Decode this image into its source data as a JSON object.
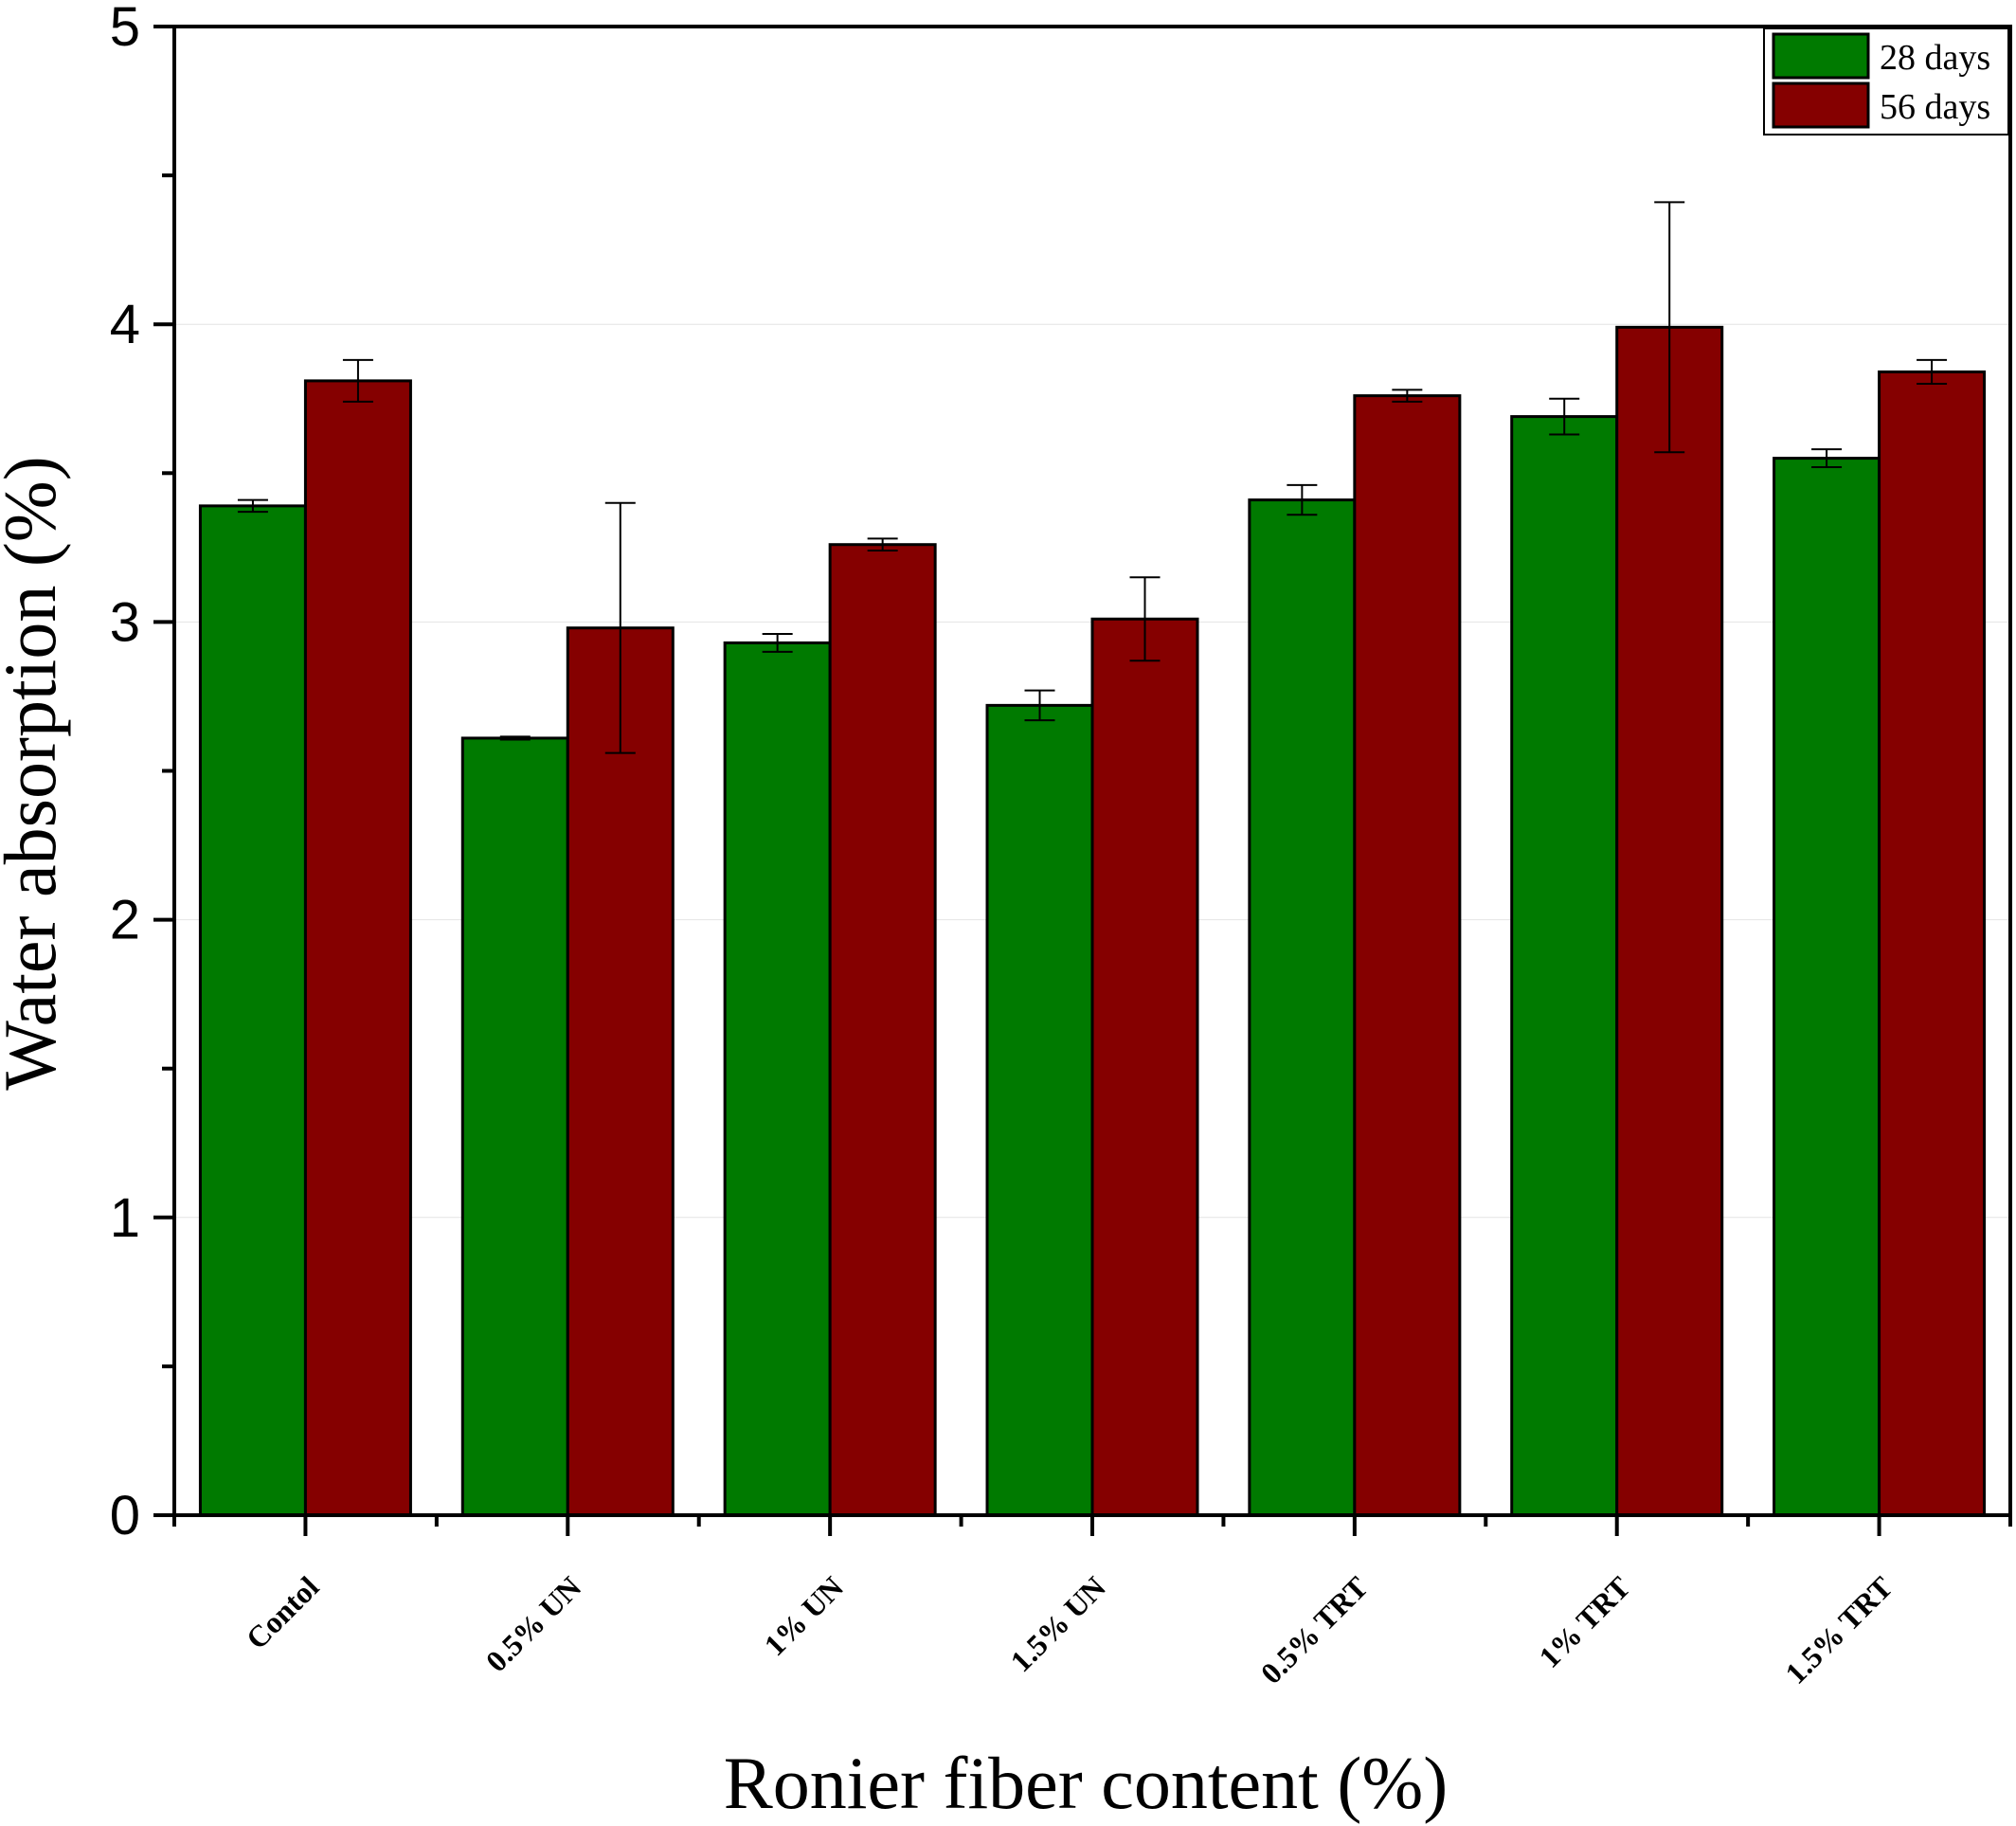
{
  "chart_data": {
    "type": "bar",
    "categories": [
      "Contol",
      "0.5% UN",
      "1% UN",
      "1.5% UN",
      "0.5% TRT",
      "1% TRT",
      "1.5% TRT"
    ],
    "series": [
      {
        "name": "28 days",
        "color": "#007a00",
        "values": [
          3.39,
          2.61,
          2.93,
          2.72,
          3.41,
          3.69,
          3.55
        ],
        "errors": [
          0.02,
          0.005,
          0.03,
          0.05,
          0.05,
          0.06,
          0.03
        ]
      },
      {
        "name": "56 days",
        "color": "#850000",
        "values": [
          3.81,
          2.98,
          3.26,
          3.01,
          3.76,
          3.99,
          3.84
        ],
        "errors": [
          0.07,
          0.42,
          0.02,
          0.14,
          0.02,
          0.42,
          0.04
        ]
      }
    ],
    "xlabel": "Ronier fiber content (%)",
    "ylabel": "Water absorption (%)",
    "ylim": [
      0,
      5
    ],
    "yticks": [
      "0",
      "1",
      "2",
      "3",
      "4",
      "5"
    ],
    "grid": true,
    "legend_position": "top-right"
  }
}
